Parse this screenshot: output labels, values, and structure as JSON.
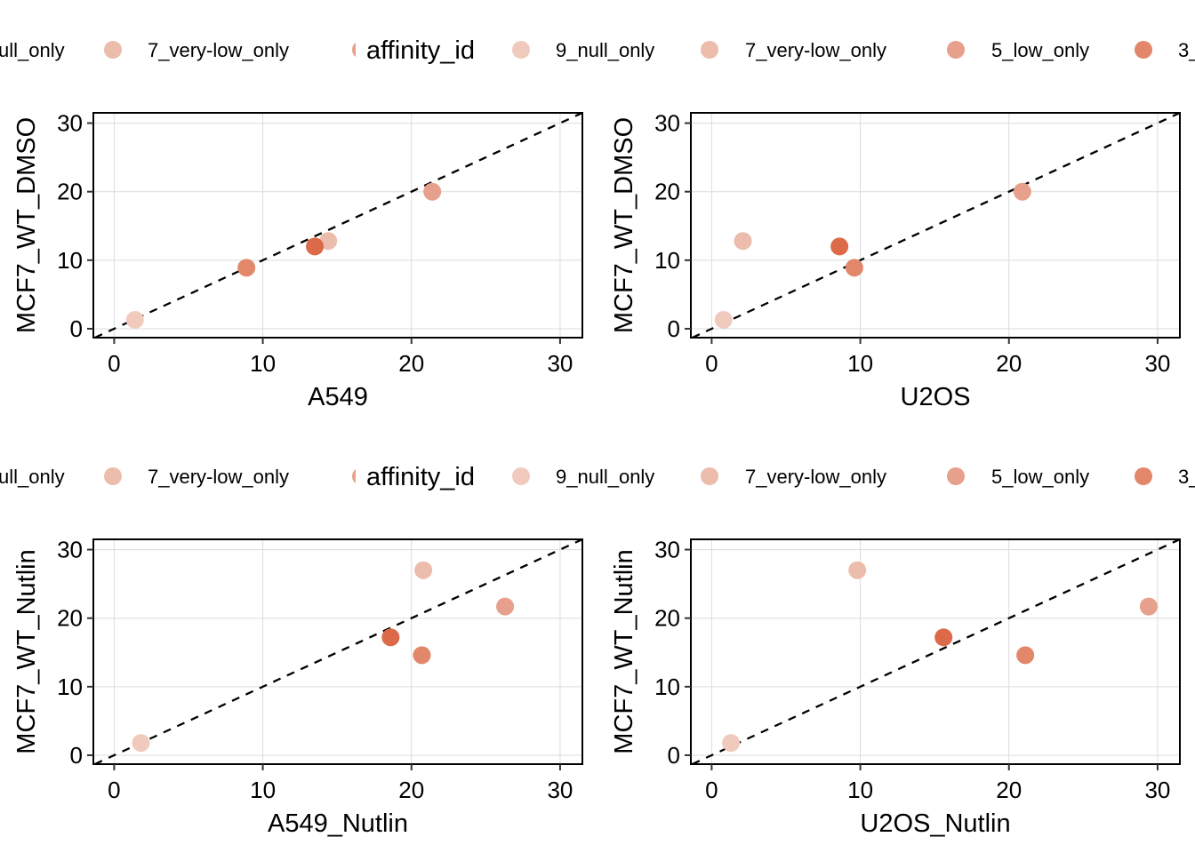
{
  "legend": {
    "title": "affinity_id",
    "left_fragment_items": [
      {
        "label": "ull_only",
        "color": "#f0cbbd"
      },
      {
        "label": "7_very-low_only",
        "color": "#ecbcac"
      }
    ],
    "items": [
      {
        "label": "9_null_only",
        "color": "#f0cbbd"
      },
      {
        "label": "7_very-low_only",
        "color": "#ecbcac"
      },
      {
        "label": "5_low_only",
        "color": "#e6a08b"
      },
      {
        "label": "3_",
        "color": "#e3876b"
      }
    ]
  },
  "chart_data": [
    {
      "type": "scatter",
      "xlabel": "A549",
      "ylabel": "MCF7_WT_DMSO",
      "xlim": [
        -1.4,
        31.5
      ],
      "ylim": [
        -1.3,
        31.5
      ],
      "xticks": [
        "0",
        "10",
        "20",
        "30"
      ],
      "yticks": [
        "0",
        "10",
        "20",
        "30"
      ],
      "reference_line": "y = x (dashed)",
      "grid": true,
      "points": [
        {
          "x": 1.4,
          "y": 1.3,
          "color": "#f0cbbd"
        },
        {
          "x": 8.9,
          "y": 8.9,
          "color": "#e3876b"
        },
        {
          "x": 14.4,
          "y": 12.8,
          "color": "#ecbcac"
        },
        {
          "x": 13.5,
          "y": 12.0,
          "color": "#dc6a48"
        },
        {
          "x": 21.4,
          "y": 20.0,
          "color": "#e6a08b"
        }
      ]
    },
    {
      "type": "scatter",
      "xlabel": "U2OS",
      "ylabel": "MCF7_WT_DMSO",
      "xlim": [
        -1.4,
        31.5
      ],
      "ylim": [
        -1.3,
        31.5
      ],
      "xticks": [
        "0",
        "10",
        "20",
        "30"
      ],
      "yticks": [
        "0",
        "10",
        "20",
        "30"
      ],
      "reference_line": "y = x (dashed)",
      "grid": true,
      "points": [
        {
          "x": 0.8,
          "y": 1.3,
          "color": "#f0cbbd"
        },
        {
          "x": 2.1,
          "y": 12.8,
          "color": "#ecbcac"
        },
        {
          "x": 8.6,
          "y": 12.0,
          "color": "#dc6a48"
        },
        {
          "x": 9.6,
          "y": 8.9,
          "color": "#e3876b"
        },
        {
          "x": 20.9,
          "y": 20.0,
          "color": "#e6a08b"
        }
      ]
    },
    {
      "type": "scatter",
      "xlabel": "A549_Nutlin",
      "ylabel": "MCF7_WT_Nutlin",
      "xlim": [
        -1.4,
        31.5
      ],
      "ylim": [
        -1.3,
        31.5
      ],
      "xticks": [
        "0",
        "10",
        "20",
        "30"
      ],
      "yticks": [
        "0",
        "10",
        "20",
        "30"
      ],
      "reference_line": "y = x (dashed)",
      "grid": true,
      "points": [
        {
          "x": 1.8,
          "y": 1.8,
          "color": "#f0cbbd"
        },
        {
          "x": 18.6,
          "y": 17.2,
          "color": "#dc6a48"
        },
        {
          "x": 20.7,
          "y": 14.6,
          "color": "#e3876b"
        },
        {
          "x": 20.8,
          "y": 27.0,
          "color": "#ecbcac"
        },
        {
          "x": 26.3,
          "y": 21.7,
          "color": "#e6a08b"
        }
      ]
    },
    {
      "type": "scatter",
      "xlabel": "U2OS_Nutlin",
      "ylabel": "MCF7_WT_Nutlin",
      "xlim": [
        -1.4,
        31.5
      ],
      "ylim": [
        -1.3,
        31.5
      ],
      "xticks": [
        "0",
        "10",
        "20",
        "30"
      ],
      "yticks": [
        "0",
        "10",
        "20",
        "30"
      ],
      "reference_line": "y = x (dashed)",
      "grid": true,
      "points": [
        {
          "x": 1.3,
          "y": 1.8,
          "color": "#f0cbbd"
        },
        {
          "x": 9.8,
          "y": 27.0,
          "color": "#ecbcac"
        },
        {
          "x": 15.6,
          "y": 17.2,
          "color": "#dc6a48"
        },
        {
          "x": 21.1,
          "y": 14.6,
          "color": "#e3876b"
        },
        {
          "x": 29.4,
          "y": 21.7,
          "color": "#e6a08b"
        }
      ]
    }
  ]
}
